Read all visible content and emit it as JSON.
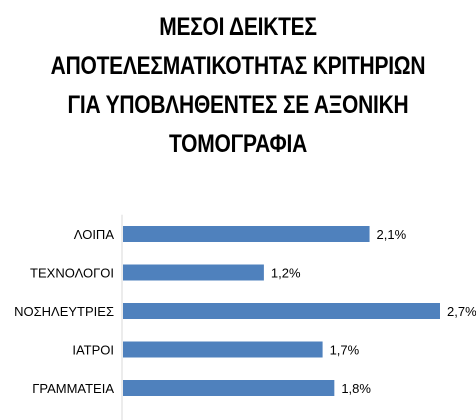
{
  "chart_data": {
    "type": "bar",
    "orientation": "horizontal",
    "title_lines": [
      "ΜΕΣΟΙ ΔΕΙΚΤΕΣ",
      "ΑΠΟΤΕΛΕΣΜΑΤΙΚΟΤΗΤΑΣ ΚΡΙΤΗΡΙΩΝ",
      "ΓΙΑ ΥΠΟΒΛΗΘΕΝΤΕΣ ΣΕ ΑΞΟΝΙΚΗ",
      "ΤΟΜΟΓΡΑΦΙΑ"
    ],
    "categories": [
      "ΛΟΙΠΑ",
      "ΤΕΧΝΟΛΟΓΟΙ",
      "ΝΟΣΗΛΕΥΤΡΙΕΣ",
      "ΙΑΤΡΟΙ",
      "ΓΡΑΜΜΑΤΕΙΑ"
    ],
    "values": [
      2.1,
      1.2,
      2.7,
      1.7,
      1.8
    ],
    "data_labels": [
      "2,1%",
      "1,2%",
      "2,7%",
      "1,7%",
      "1,8%"
    ],
    "xlim": [
      0,
      2.7
    ],
    "bar_color": "#4f81bd",
    "grid": false,
    "legend": "none"
  }
}
